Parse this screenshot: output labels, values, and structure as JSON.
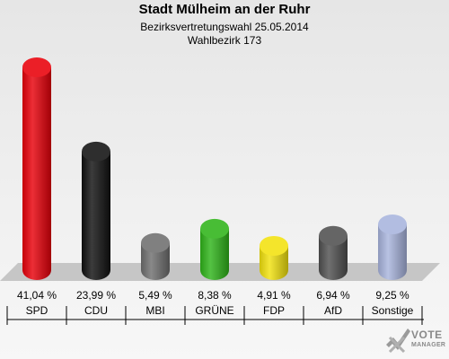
{
  "header": {
    "title": "Stadt Mülheim an der Ruhr",
    "subtitle1": "Bezirksvertretungswahl 25.05.2014",
    "subtitle2": "Wahlbezirk 173"
  },
  "chart_data": {
    "type": "bar",
    "categories": [
      "SPD",
      "CDU",
      "MBI",
      "GRÜNE",
      "FDP",
      "AfD",
      "Sonstige"
    ],
    "values": [
      41.04,
      23.99,
      5.49,
      8.38,
      4.91,
      6.94,
      9.25
    ],
    "value_labels": [
      "41,04 %",
      "23,99 %",
      "5,49 %",
      "8,38 %",
      "4,91 %",
      "6,94 %",
      "9,25 %"
    ],
    "colors": [
      "#e8000a",
      "#111111",
      "#6f6f6f",
      "#2fb41a",
      "#f2e20e",
      "#505050",
      "#a8b4dd"
    ],
    "ylim": [
      0,
      41.04
    ],
    "grid": false,
    "legend": "none"
  },
  "logo": {
    "line1": "VOTE",
    "line2": "MANAGER",
    "icon": "checkmark-x-icon"
  }
}
